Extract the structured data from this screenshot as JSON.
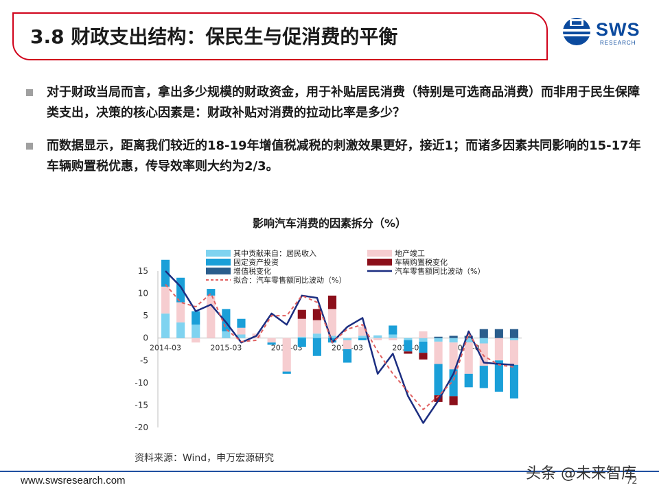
{
  "slide": {
    "title": "3.8 财政支出结构：保民生与促消费的平衡",
    "logo_text": "SWS",
    "logo_sub": "RESEARCH",
    "bullets": [
      "对于财政当局而言，拿出多少规模的财政资金，用于补贴居民消费（特别是可选商品消费）而非用于民生保障类支出，决策的核心因素是：财政补贴对消费的拉动比率是多少？",
      "而数据显示，距离我们较近的18-19年增值税减税的刺激效果更好，接近1；而诸多因素共同影响的15-17年车辆购置税优惠，传导效率则大约为2/3。"
    ],
    "source": "资料来源：Wind，申万宏源研究",
    "footer_url": "www.swsresearch.com",
    "page_number": "72",
    "watermark": "头条 @未来智库"
  },
  "colors": {
    "brand_red": "#d0021b",
    "brand_blue": "#0b4a9e",
    "income": "#7fd3f0",
    "property": "#f6cdd0",
    "fixed_asset": "#1a9fd8",
    "vehicle_tax": "#8b0f1a",
    "vat": "#2a5d8c",
    "fit_line": "#e06060",
    "retail_line": "#1b2d80"
  },
  "chart_data": {
    "type": "bar",
    "title": "影响汽车消费的因素拆分（%）",
    "ylim": [
      -20,
      15
    ],
    "yticks": [
      15,
      10,
      5,
      0,
      -5,
      -10,
      -15,
      -20
    ],
    "xtick_labels": [
      "2014-03",
      "2015-03",
      "2016-03",
      "2017-03",
      "2018-03",
      "2019-03"
    ],
    "categories": [
      "2014Q1",
      "2014Q2",
      "2014Q3",
      "2014Q4",
      "2015Q1",
      "2015Q2",
      "2015Q3",
      "2015Q4",
      "2016Q1",
      "2016Q2",
      "2016Q3",
      "2016Q4",
      "2017Q1",
      "2017Q2",
      "2017Q3",
      "2017Q4",
      "2018Q1",
      "2018Q2",
      "2018Q3",
      "2018Q4",
      "2019Q1",
      "2019Q2",
      "2019Q3",
      "2019Q4"
    ],
    "legend": [
      {
        "key": "income",
        "label": "其中贡献来自：居民收入"
      },
      {
        "key": "property",
        "label": "地产竣工"
      },
      {
        "key": "fixed_asset",
        "label": "固定资产投资"
      },
      {
        "key": "vehicle_tax",
        "label": "车辆购置税变化"
      },
      {
        "key": "vat",
        "label": "增值税变化"
      },
      {
        "key": "retail",
        "label": "汽车零售额同比波动（%）"
      },
      {
        "key": "fit",
        "label": "拟合：汽车零售额同比波动（%）"
      }
    ],
    "series": [
      {
        "key": "income",
        "name": "其中贡献来自：居民收入",
        "values": [
          5.5,
          3.5,
          3.0,
          0,
          1.5,
          0.8,
          0,
          0,
          0,
          0.3,
          1.0,
          0.5,
          -0.5,
          0.5,
          0.6,
          0.8,
          -0.5,
          -0.8,
          -0.8,
          -1.0,
          -1.0,
          -1.2,
          0,
          -0.5
        ]
      },
      {
        "key": "property",
        "name": "地产竣工",
        "values": [
          6.0,
          4.5,
          -1.0,
          9.5,
          0,
          1.5,
          1.0,
          -1.0,
          -7.5,
          4.0,
          3.0,
          6.0,
          -2.0,
          2.0,
          -0.5,
          -0.5,
          0,
          1.5,
          -5.0,
          -6.0,
          -7.0,
          -5.0,
          -5.0,
          -5.5
        ]
      },
      {
        "key": "fixed_asset",
        "name": "固定资产投资",
        "values": [
          6.0,
          5.5,
          3.0,
          1.5,
          5.0,
          2.0,
          0,
          -0.5,
          -0.5,
          -2.0,
          -4.0,
          -1.0,
          -3.0,
          -0.5,
          0,
          2.0,
          -2.5,
          -2.5,
          -7.0,
          -6.0,
          -3.0,
          -5.0,
          -7.0,
          -7.5
        ]
      },
      {
        "key": "vehicle_tax",
        "name": "车辆购置税变化",
        "values": [
          0,
          0,
          0,
          0,
          0,
          0,
          0,
          0,
          0,
          2.0,
          2.5,
          3.0,
          0,
          0,
          0,
          0,
          -0.5,
          -1.5,
          -1.5,
          -2.0,
          0,
          0,
          0,
          0
        ]
      },
      {
        "key": "vat",
        "name": "增值税变化",
        "values": [
          0,
          0,
          0,
          0,
          0,
          0,
          0,
          0,
          0,
          0,
          0,
          0,
          0,
          0,
          0,
          0,
          0,
          0,
          0.3,
          0.5,
          0.5,
          2.0,
          2.0,
          2.0
        ]
      },
      {
        "key": "retail",
        "name": "汽车零售额同比波动（%）",
        "type": "line",
        "values": [
          15,
          11.5,
          6,
          7.5,
          3.5,
          -1,
          0.5,
          5.5,
          3,
          9.5,
          9,
          -1,
          2.5,
          4.5,
          -8,
          -3.5,
          -13,
          -19,
          -14,
          -8,
          1.5,
          -5.5,
          -5.8,
          -6
        ]
      },
      {
        "key": "fit",
        "name": "拟合：汽车零售额同比波动（%）",
        "type": "line",
        "values": [
          12,
          8,
          7,
          10,
          2,
          -0.8,
          -0.5,
          5,
          5,
          9.5,
          8,
          -1,
          2,
          3,
          -3,
          -8,
          -12,
          -16,
          -13,
          -9.5,
          1,
          -4,
          -6,
          -6.5
        ]
      }
    ]
  }
}
